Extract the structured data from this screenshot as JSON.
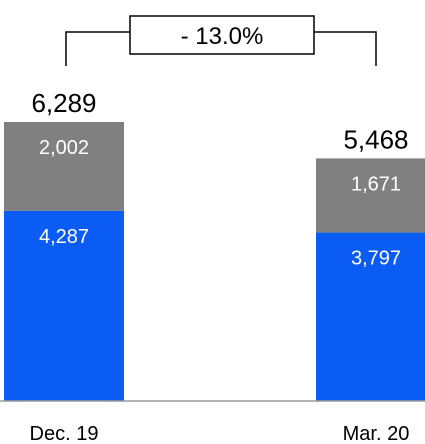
{
  "chart_data": {
    "type": "bar",
    "stacked": true,
    "categories": [
      "Dec. 19",
      "Mar. 20"
    ],
    "series": [
      {
        "values": [
          4287,
          3797
        ],
        "labels": [
          "4,287",
          "3,797"
        ],
        "color": "#0a5cf5"
      },
      {
        "values": [
          2002,
          1671
        ],
        "labels": [
          "2,002",
          "1,671"
        ],
        "color": "#808080"
      }
    ],
    "totals": [
      6289,
      5468
    ],
    "total_labels": [
      "6,289",
      "5,468"
    ],
    "change_label": "- 13.0%",
    "ylim": [
      0,
      6289
    ],
    "grid": false,
    "legend": "none"
  }
}
